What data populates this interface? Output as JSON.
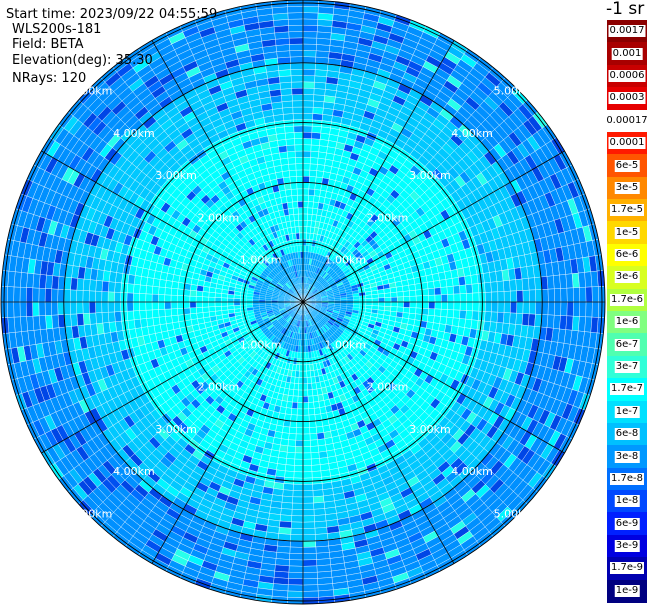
{
  "header": {
    "start_time": "Start time: 2023/09/22 04:55:59",
    "instrument": "WLS200s-181",
    "field": "Field: BETA",
    "elevation": "Elevation(deg): 35.30",
    "nrays": "NRays: 120"
  },
  "colorbar": {
    "title": "-1 sr",
    "labels": [
      "0.0017",
      "0.001",
      "0.0006",
      "0.0003",
      "0.00017",
      "0.0001",
      "6e-5",
      "3e-5",
      "1.7e-5",
      "1e-5",
      "6e-6",
      "3e-6",
      "1.7e-6",
      "1e-6",
      "6e-7",
      "3e-7",
      "1.7e-7",
      "1e-7",
      "6e-8",
      "3e-8",
      "1.7e-8",
      "1e-8",
      "6e-9",
      "3e-9",
      "1.7e-9",
      "1e-9"
    ],
    "colors": [
      "#8b0000",
      "#a80000",
      "#c80000",
      "#e60000",
      "#ffffff",
      "#ff1a00",
      "#ff5500",
      "#ff8800",
      "#ffb000",
      "#ffd800",
      "#ffff00",
      "#d8ff20",
      "#b0ff40",
      "#80ff80",
      "#50ffb0",
      "#30ffd8",
      "#00ffff",
      "#00e0ff",
      "#00c0ff",
      "#0098ff",
      "#0070ff",
      "#0048ff",
      "#0020ff",
      "#0000e0",
      "#0000b0",
      "#000080"
    ]
  },
  "chart_data": {
    "type": "heatmap",
    "projection": "polar-ppi",
    "field": "BETA",
    "elevation_deg": 35.3,
    "nrays": 120,
    "range_rings_km": [
      {
        "value": 1,
        "label": "1.00km"
      },
      {
        "value": 2,
        "label": "2.00km"
      },
      {
        "value": 3,
        "label": "3.00km"
      },
      {
        "value": 4,
        "label": "4.00km"
      },
      {
        "value": 5,
        "label": "5.00km"
      }
    ],
    "max_range_km": 5.05,
    "azimuth_spokes_deg": [
      0,
      30,
      60,
      90,
      120,
      150,
      180,
      210,
      240,
      270,
      300,
      330
    ],
    "value_regions": [
      {
        "range_km": [
          0,
          0.8
        ],
        "typical_value": "1e-7",
        "color": "#00a8ff"
      },
      {
        "range_km": [
          0.8,
          3.0
        ],
        "typical_value": "1.7e-7",
        "color": "#00ffff"
      },
      {
        "range_km": [
          3.0,
          4.0
        ],
        "typical_value": "6e-8",
        "color": "#00c8ff"
      },
      {
        "range_km": [
          4.0,
          5.05
        ],
        "typical_value": "3e-8",
        "color": "#0090ff"
      }
    ]
  }
}
